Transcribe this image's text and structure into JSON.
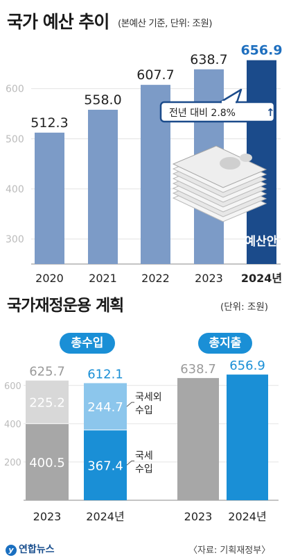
{
  "header": {
    "title": "국가 예산 추이",
    "subtitle": "(본예산 기준, 단위: 조원)"
  },
  "callout": {
    "text": "전년 대비 2.8%",
    "arrow": "↑"
  },
  "budget_tag": "예산안",
  "section2": {
    "title": "국가재정운용 계획",
    "unit": "(단위: 조원)",
    "revenue_label": "총수입",
    "expenditure_label": "총지출",
    "legend_nontax": [
      "국세외",
      "수입"
    ],
    "legend_tax": [
      "국세",
      "수입"
    ]
  },
  "footer": {
    "logo_text": "연합뉴스",
    "logo_mark": "y",
    "source": "〈자료: 기획재정부〉"
  },
  "colors": {
    "bar_main": "#7c9bc7",
    "bar_highlight": "#1b4b8b",
    "highlight_label": "#1e6fbf",
    "gray_total": "#9a9a9a",
    "gray_tax": "#a7a7a7",
    "gray_nontax": "#d8d8d8",
    "blue_tax": "#1a8fd6",
    "blue_nontax": "#8cc6ec"
  },
  "chart_data": [
    {
      "type": "bar",
      "title": "국가 예산 추이",
      "subtitle": "(본예산 기준, 단위: 조원)",
      "categories": [
        "2020",
        "2021",
        "2022",
        "2023",
        "2024년"
      ],
      "values": [
        512.3,
        558.0,
        607.7,
        638.7,
        656.9
      ],
      "value_labels": [
        "512.3",
        "558.0",
        "607.7",
        "638.7",
        "656.9"
      ],
      "y_ticks": [
        "300",
        "400",
        "500",
        "600"
      ],
      "ylim": [
        250,
        680
      ],
      "grid": true
    },
    {
      "type": "bar",
      "title": "총수입",
      "stacked": true,
      "categories": [
        "2023",
        "2024년"
      ],
      "series": [
        {
          "name": "국세 수입",
          "values": [
            400.5,
            367.4
          ],
          "labels": [
            "400.5",
            "367.4"
          ]
        },
        {
          "name": "국세외 수입",
          "values": [
            225.2,
            244.7
          ],
          "labels": [
            "225.2",
            "244.7"
          ]
        }
      ],
      "totals": [
        625.7,
        612.1
      ],
      "total_labels": [
        "625.7",
        "612.1"
      ],
      "y_ticks": [
        "200",
        "400",
        "600"
      ],
      "ylim": [
        0,
        690
      ],
      "grid": true
    },
    {
      "type": "bar",
      "title": "총지출",
      "categories": [
        "2023",
        "2024년"
      ],
      "values": [
        638.7,
        656.9
      ],
      "value_labels": [
        "638.7",
        "656.9"
      ],
      "ylim": [
        0,
        690
      ],
      "grid": true
    }
  ]
}
